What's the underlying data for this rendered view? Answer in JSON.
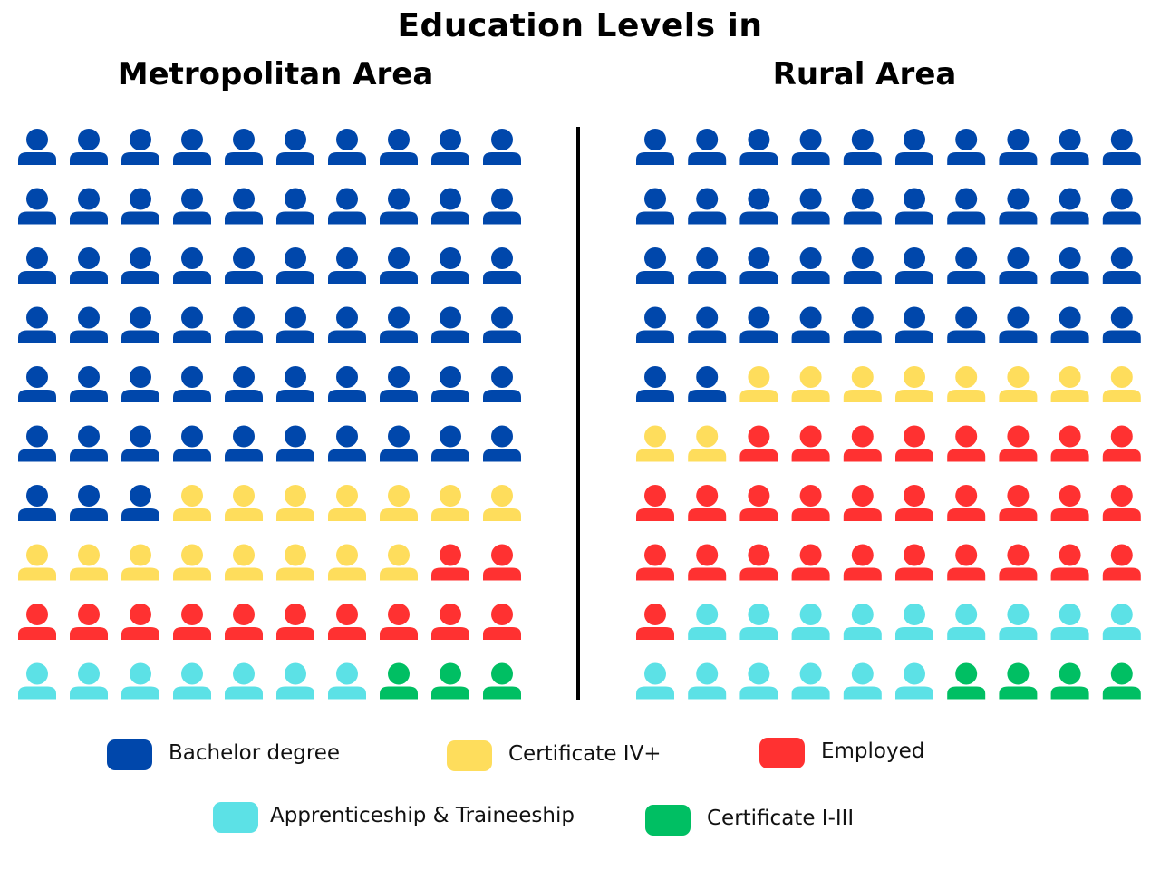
{
  "title": "Education Levels in",
  "chart_data": [
    {
      "type": "waffle",
      "title": "Metropolitan Area",
      "counts": [
        {
          "category": "Bachelor degree",
          "value": 63
        },
        {
          "category": "Certificate IV+",
          "value": 15
        },
        {
          "category": "Employed",
          "value": 12
        },
        {
          "category": "Apprenticeship & Traineeship",
          "value": 7
        },
        {
          "category": "Certificate I-III",
          "value": 3
        }
      ]
    },
    {
      "type": "waffle",
      "title": "Rural Area",
      "counts": [
        {
          "category": "Bachelor degree",
          "value": 42
        },
        {
          "category": "Certificate IV+",
          "value": 10
        },
        {
          "category": "Employed",
          "value": 29
        },
        {
          "category": "Apprenticeship & Traineeship",
          "value": 15
        },
        {
          "category": "Certificate I-III",
          "value": 4
        }
      ]
    }
  ],
  "legend": [
    {
      "label": "Bachelor degree",
      "color": "#0047AB"
    },
    {
      "label": "Certificate IV+",
      "color": "#FEDD5C"
    },
    {
      "label": "Employed",
      "color": "#FF3131"
    },
    {
      "label": "Apprenticeship & Traineeship",
      "color": "#5CE1E6"
    },
    {
      "label": "Certificate I-III",
      "color": "#00BF63"
    }
  ]
}
